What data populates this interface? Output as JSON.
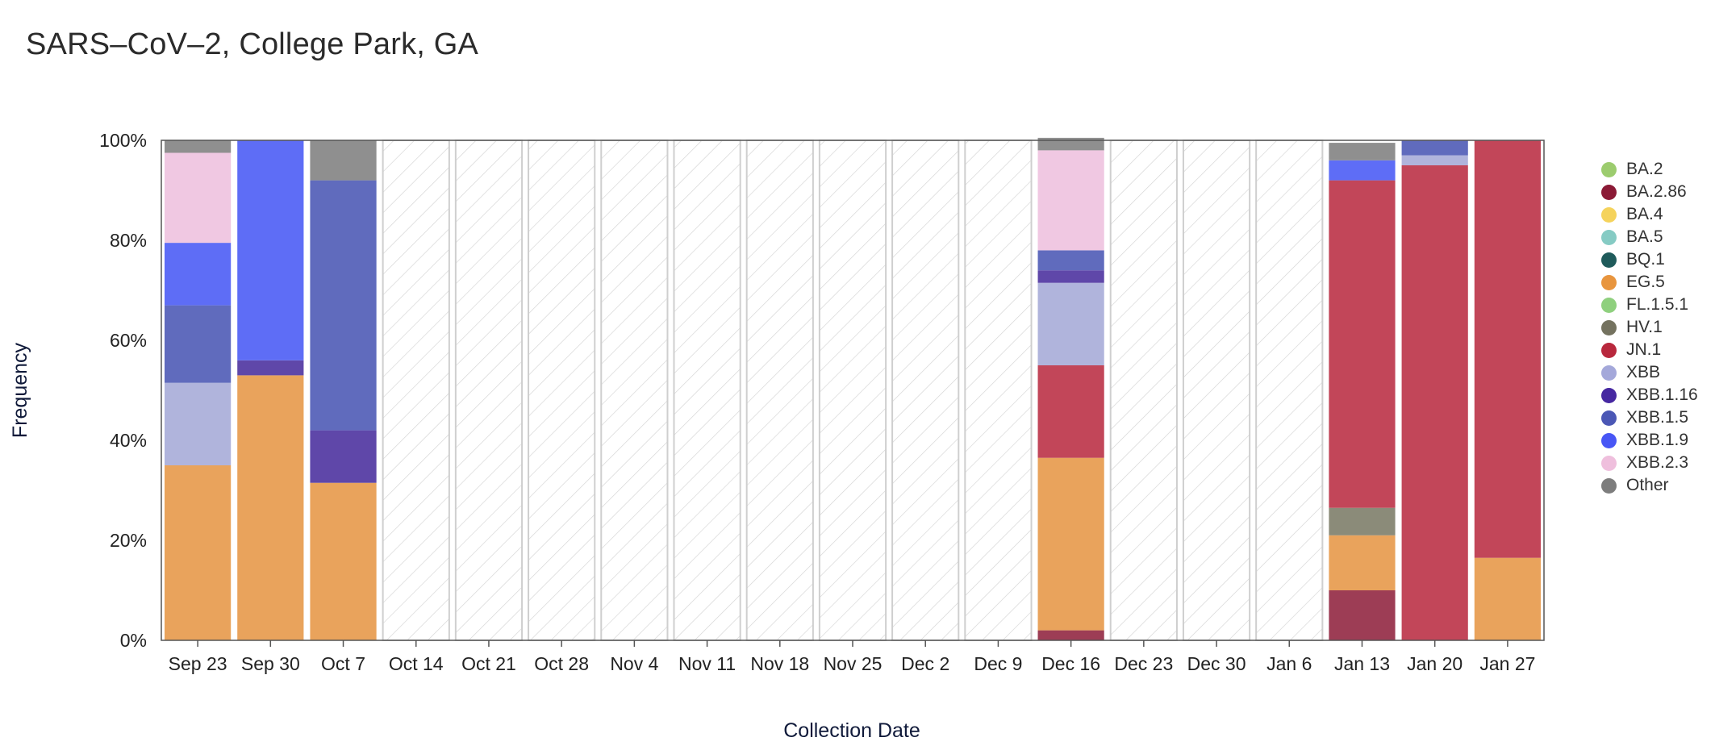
{
  "title": "SARS–CoV–2, College Park, GA",
  "chart_data": {
    "type": "bar",
    "stacked": true,
    "title": "SARS–CoV–2, College Park, GA",
    "xlabel": "Collection Date",
    "ylabel": "Frequency",
    "ylim": [
      0,
      100
    ],
    "y_ticks": [
      "0%",
      "20%",
      "40%",
      "60%",
      "80%",
      "100%"
    ],
    "categories": [
      "Sep 23",
      "Sep 30",
      "Oct 7",
      "Oct 14",
      "Oct 21",
      "Oct 28",
      "Nov 4",
      "Nov 11",
      "Nov 18",
      "Nov 25",
      "Dec 2",
      "Dec 9",
      "Dec 16",
      "Dec 23",
      "Dec 30",
      "Jan 6",
      "Jan 13",
      "Jan 20",
      "Jan 27"
    ],
    "no_data_categories": [
      "Oct 14",
      "Oct 21",
      "Oct 28",
      "Nov 4",
      "Nov 11",
      "Nov 18",
      "Nov 25",
      "Dec 2",
      "Dec 9",
      "Dec 23",
      "Dec 30",
      "Jan 6"
    ],
    "legend_placement": "right",
    "legend": [
      {
        "name": "BA.2",
        "color": "#9ccc6e"
      },
      {
        "name": "BA.2.86",
        "color": "#8b1a36"
      },
      {
        "name": "BA.4",
        "color": "#f5d35c"
      },
      {
        "name": "BA.5",
        "color": "#86cbc4"
      },
      {
        "name": "BQ.1",
        "color": "#1f5b5b"
      },
      {
        "name": "EG.5",
        "color": "#e8953e"
      },
      {
        "name": "FL.1.5.1",
        "color": "#8fd07e"
      },
      {
        "name": "HV.1",
        "color": "#74725f"
      },
      {
        "name": "JN.1",
        "color": "#b8283d"
      },
      {
        "name": "XBB",
        "color": "#a4a8da"
      },
      {
        "name": "XBB.1.16",
        "color": "#4628a1"
      },
      {
        "name": "XBB.1.5",
        "color": "#4b57b5"
      },
      {
        "name": "XBB.1.9",
        "color": "#4856f5"
      },
      {
        "name": "XBB.2.3",
        "color": "#efbfdd"
      },
      {
        "name": "Other",
        "color": "#7d7d7d"
      }
    ],
    "series": [
      {
        "name": "BA.2.86",
        "color": "#9d3d55",
        "values": [
          0,
          0,
          0,
          null,
          null,
          null,
          null,
          null,
          null,
          null,
          null,
          null,
          2,
          null,
          null,
          null,
          10,
          0,
          0
        ]
      },
      {
        "name": "EG.5",
        "color": "#e9a35c",
        "values": [
          35,
          53,
          31.5,
          null,
          null,
          null,
          null,
          null,
          null,
          null,
          null,
          null,
          34.5,
          null,
          null,
          null,
          11,
          0,
          16.5
        ]
      },
      {
        "name": "HV.1",
        "color": "#8b8b79",
        "values": [
          0,
          0,
          0,
          null,
          null,
          null,
          null,
          null,
          null,
          null,
          null,
          null,
          0,
          null,
          null,
          null,
          5.5,
          0,
          0
        ]
      },
      {
        "name": "JN.1",
        "color": "#c24659",
        "values": [
          0,
          0,
          0,
          null,
          null,
          null,
          null,
          null,
          null,
          null,
          null,
          null,
          18.5,
          null,
          null,
          null,
          65.5,
          95,
          83.5
        ]
      },
      {
        "name": "XBB",
        "color": "#b0b4dc",
        "values": [
          16.5,
          0,
          0,
          null,
          null,
          null,
          null,
          null,
          null,
          null,
          null,
          null,
          16.5,
          null,
          null,
          null,
          0,
          2,
          0
        ]
      },
      {
        "name": "XBB.1.16",
        "color": "#5f47a9",
        "values": [
          0,
          3,
          10.5,
          null,
          null,
          null,
          null,
          null,
          null,
          null,
          null,
          null,
          2.5,
          null,
          null,
          null,
          0,
          0,
          0
        ]
      },
      {
        "name": "XBB.1.5",
        "color": "#606bbd",
        "values": [
          15.5,
          0,
          50,
          null,
          null,
          null,
          null,
          null,
          null,
          null,
          null,
          null,
          4,
          null,
          null,
          null,
          0,
          3,
          0
        ]
      },
      {
        "name": "XBB.1.9",
        "color": "#5e6df6",
        "values": [
          12.5,
          44,
          0,
          null,
          null,
          null,
          null,
          null,
          null,
          null,
          null,
          null,
          0,
          null,
          null,
          null,
          4,
          0,
          0
        ]
      },
      {
        "name": "XBB.2.3",
        "color": "#f0c8e2",
        "values": [
          18,
          0,
          0,
          null,
          null,
          null,
          null,
          null,
          null,
          null,
          null,
          null,
          20,
          null,
          null,
          null,
          0,
          0,
          0
        ]
      },
      {
        "name": "Other",
        "color": "#8f8f8f",
        "values": [
          2.5,
          0,
          8,
          null,
          null,
          null,
          null,
          null,
          null,
          null,
          null,
          null,
          2.5,
          null,
          null,
          null,
          3.5,
          0,
          0
        ]
      }
    ]
  }
}
